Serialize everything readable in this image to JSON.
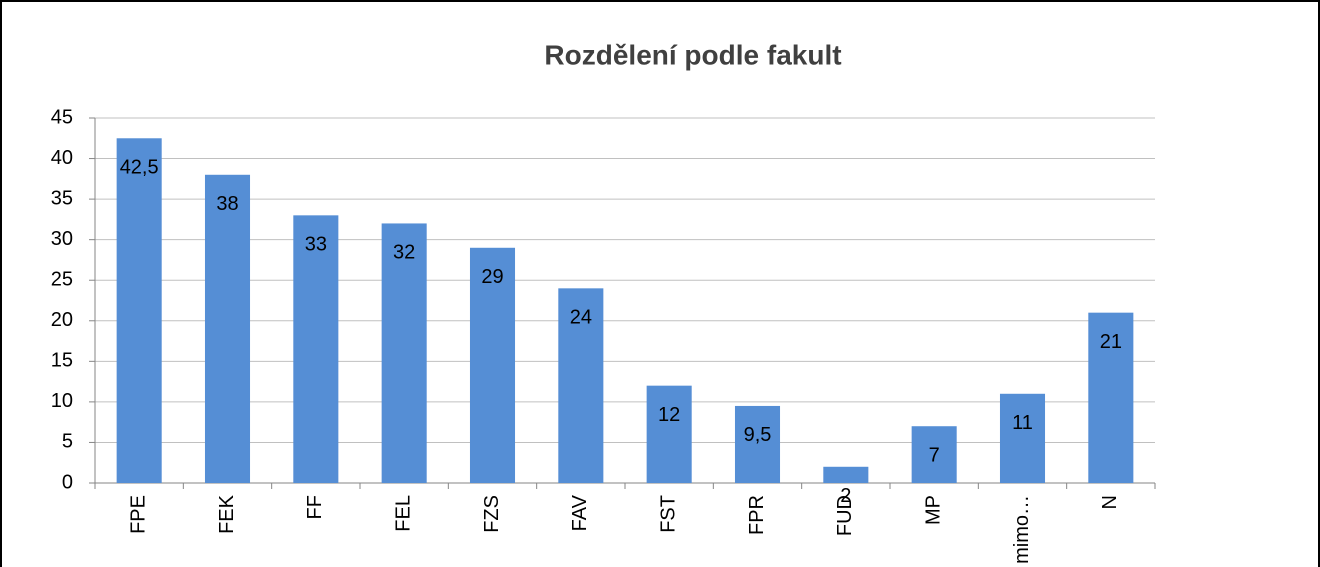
{
  "chart_data": {
    "type": "bar",
    "title": "Rozdělení podle fakult",
    "categories": [
      "FPE",
      "FEK",
      "FF",
      "FEL",
      "FZS",
      "FAV",
      "FST",
      "FPR",
      "FUD",
      "MP",
      "mimo…",
      "N"
    ],
    "values": [
      42.5,
      38,
      33,
      32,
      29,
      24,
      12,
      9.5,
      2,
      7,
      11,
      21
    ],
    "value_labels": [
      "42,5",
      "38",
      "33",
      "32",
      "29",
      "24",
      "12",
      "9,5",
      "2",
      "7",
      "11",
      "21"
    ],
    "color": "#558ed5",
    "ylim": [
      0,
      45
    ],
    "yticks": [
      0,
      5,
      10,
      15,
      20,
      25,
      30,
      35,
      40,
      45
    ],
    "grid": true
  }
}
